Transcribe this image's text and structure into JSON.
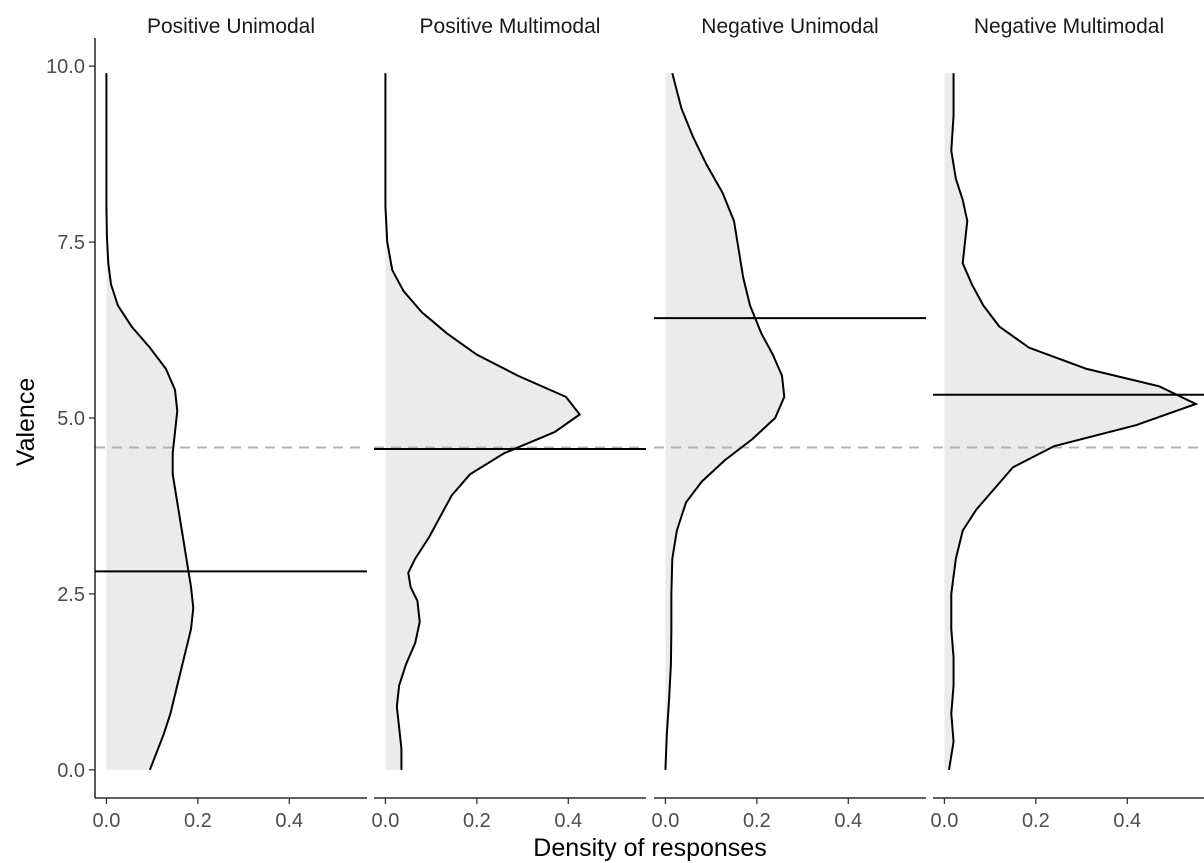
{
  "chart_data": {
    "type": "area",
    "orientation": "horizontal-density",
    "xlabel": "Density of responses",
    "ylabel": "Valence",
    "xlim": [
      -0.025,
      0.57
    ],
    "ylim": [
      -0.4,
      10.4
    ],
    "x_ticks": [
      0.0,
      0.2,
      0.4
    ],
    "x_tick_labels": [
      "0.0",
      "0.2",
      "0.4"
    ],
    "y_ticks": [
      0,
      2.5,
      5,
      7.5,
      10
    ],
    "y_tick_labels": [
      "0.0",
      "2.5",
      "5.0",
      "7.5",
      "10.0"
    ],
    "reference_line": {
      "value": 4.58,
      "style": "dashed",
      "color": "#b3b3b3"
    },
    "fill_color": "#ebebeb",
    "grid": false,
    "facets": [
      {
        "title": "Positive Unimodal",
        "mean_line": 2.82,
        "curve": [
          {
            "y": 0.0,
            "x": 0.095
          },
          {
            "y": 0.25,
            "x": 0.11
          },
          {
            "y": 0.5,
            "x": 0.125
          },
          {
            "y": 0.8,
            "x": 0.14
          },
          {
            "y": 1.2,
            "x": 0.155
          },
          {
            "y": 1.6,
            "x": 0.17
          },
          {
            "y": 2.0,
            "x": 0.185
          },
          {
            "y": 2.3,
            "x": 0.19
          },
          {
            "y": 2.6,
            "x": 0.185
          },
          {
            "y": 3.0,
            "x": 0.175
          },
          {
            "y": 3.4,
            "x": 0.165
          },
          {
            "y": 3.8,
            "x": 0.155
          },
          {
            "y": 4.2,
            "x": 0.145
          },
          {
            "y": 4.5,
            "x": 0.145
          },
          {
            "y": 4.8,
            "x": 0.15
          },
          {
            "y": 5.1,
            "x": 0.155
          },
          {
            "y": 5.4,
            "x": 0.15
          },
          {
            "y": 5.7,
            "x": 0.13
          },
          {
            "y": 6.0,
            "x": 0.095
          },
          {
            "y": 6.3,
            "x": 0.055
          },
          {
            "y": 6.6,
            "x": 0.025
          },
          {
            "y": 6.9,
            "x": 0.01
          },
          {
            "y": 7.2,
            "x": 0.004
          },
          {
            "y": 7.6,
            "x": 0.001
          },
          {
            "y": 8.0,
            "x": 0.0
          },
          {
            "y": 9.9,
            "x": 0.0
          }
        ]
      },
      {
        "title": "Positive Multimodal",
        "mean_line": 4.56,
        "curve": [
          {
            "y": 0.0,
            "x": 0.035
          },
          {
            "y": 0.3,
            "x": 0.035
          },
          {
            "y": 0.6,
            "x": 0.03
          },
          {
            "y": 0.9,
            "x": 0.025
          },
          {
            "y": 1.2,
            "x": 0.03
          },
          {
            "y": 1.5,
            "x": 0.045
          },
          {
            "y": 1.8,
            "x": 0.065
          },
          {
            "y": 2.1,
            "x": 0.075
          },
          {
            "y": 2.4,
            "x": 0.07
          },
          {
            "y": 2.6,
            "x": 0.055
          },
          {
            "y": 2.8,
            "x": 0.05
          },
          {
            "y": 3.0,
            "x": 0.065
          },
          {
            "y": 3.3,
            "x": 0.095
          },
          {
            "y": 3.6,
            "x": 0.12
          },
          {
            "y": 3.9,
            "x": 0.145
          },
          {
            "y": 4.2,
            "x": 0.185
          },
          {
            "y": 4.5,
            "x": 0.26
          },
          {
            "y": 4.8,
            "x": 0.37
          },
          {
            "y": 5.05,
            "x": 0.425
          },
          {
            "y": 5.3,
            "x": 0.395
          },
          {
            "y": 5.6,
            "x": 0.29
          },
          {
            "y": 5.9,
            "x": 0.2
          },
          {
            "y": 6.2,
            "x": 0.135
          },
          {
            "y": 6.5,
            "x": 0.08
          },
          {
            "y": 6.8,
            "x": 0.04
          },
          {
            "y": 7.1,
            "x": 0.015
          },
          {
            "y": 7.5,
            "x": 0.004
          },
          {
            "y": 8.0,
            "x": 0.0
          },
          {
            "y": 9.9,
            "x": 0.0
          }
        ]
      },
      {
        "title": "Negative Unimodal",
        "mean_line": 6.42,
        "curve": [
          {
            "y": 0.0,
            "x": 0.0
          },
          {
            "y": 0.5,
            "x": 0.003
          },
          {
            "y": 1.0,
            "x": 0.008
          },
          {
            "y": 1.5,
            "x": 0.012
          },
          {
            "y": 2.0,
            "x": 0.013
          },
          {
            "y": 2.5,
            "x": 0.013
          },
          {
            "y": 3.0,
            "x": 0.015
          },
          {
            "y": 3.4,
            "x": 0.025
          },
          {
            "y": 3.8,
            "x": 0.045
          },
          {
            "y": 4.1,
            "x": 0.08
          },
          {
            "y": 4.4,
            "x": 0.13
          },
          {
            "y": 4.7,
            "x": 0.19
          },
          {
            "y": 5.0,
            "x": 0.24
          },
          {
            "y": 5.3,
            "x": 0.26
          },
          {
            "y": 5.6,
            "x": 0.255
          },
          {
            "y": 5.9,
            "x": 0.235
          },
          {
            "y": 6.2,
            "x": 0.21
          },
          {
            "y": 6.6,
            "x": 0.185
          },
          {
            "y": 7.0,
            "x": 0.17
          },
          {
            "y": 7.4,
            "x": 0.16
          },
          {
            "y": 7.8,
            "x": 0.15
          },
          {
            "y": 8.2,
            "x": 0.125
          },
          {
            "y": 8.6,
            "x": 0.09
          },
          {
            "y": 9.0,
            "x": 0.06
          },
          {
            "y": 9.4,
            "x": 0.035
          },
          {
            "y": 9.9,
            "x": 0.015
          }
        ]
      },
      {
        "title": "Negative Multimodal",
        "mean_line": 5.33,
        "curve": [
          {
            "y": 0.0,
            "x": 0.01
          },
          {
            "y": 0.4,
            "x": 0.02
          },
          {
            "y": 0.8,
            "x": 0.015
          },
          {
            "y": 1.2,
            "x": 0.02
          },
          {
            "y": 1.6,
            "x": 0.02
          },
          {
            "y": 2.0,
            "x": 0.015
          },
          {
            "y": 2.5,
            "x": 0.015
          },
          {
            "y": 3.0,
            "x": 0.025
          },
          {
            "y": 3.4,
            "x": 0.04
          },
          {
            "y": 3.7,
            "x": 0.07
          },
          {
            "y": 4.0,
            "x": 0.11
          },
          {
            "y": 4.3,
            "x": 0.15
          },
          {
            "y": 4.6,
            "x": 0.24
          },
          {
            "y": 4.9,
            "x": 0.42
          },
          {
            "y": 5.2,
            "x": 0.55
          },
          {
            "y": 5.45,
            "x": 0.47
          },
          {
            "y": 5.7,
            "x": 0.31
          },
          {
            "y": 6.0,
            "x": 0.185
          },
          {
            "y": 6.3,
            "x": 0.12
          },
          {
            "y": 6.6,
            "x": 0.085
          },
          {
            "y": 6.9,
            "x": 0.06
          },
          {
            "y": 7.2,
            "x": 0.04
          },
          {
            "y": 7.5,
            "x": 0.045
          },
          {
            "y": 7.8,
            "x": 0.05
          },
          {
            "y": 8.1,
            "x": 0.04
          },
          {
            "y": 8.4,
            "x": 0.025
          },
          {
            "y": 8.8,
            "x": 0.015
          },
          {
            "y": 9.3,
            "x": 0.02
          },
          {
            "y": 9.9,
            "x": 0.02
          }
        ]
      }
    ]
  }
}
